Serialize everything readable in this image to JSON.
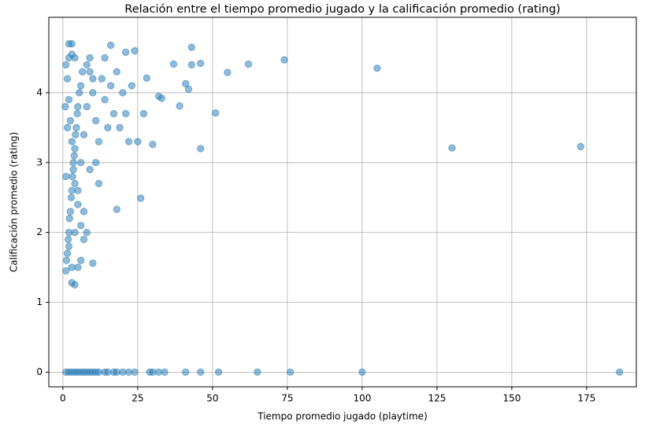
{
  "chart_data": {
    "type": "scatter",
    "title": "Relación entre el tiempo promedio jugado y la calificación promedio (rating)",
    "xlabel": "Tiempo promedio jugado (playtime)",
    "ylabel": "Calificación promedio (rating)",
    "color": "#1f77b4",
    "grid": true,
    "xlim": [
      -4.7,
      191.6
    ],
    "ylim": [
      -0.21,
      5.08
    ],
    "xticks": [
      0,
      25,
      50,
      75,
      100,
      125,
      150,
      175
    ],
    "yticks": [
      0,
      1,
      2,
      3,
      4
    ],
    "x": [
      105,
      74,
      62,
      55,
      46,
      43,
      43,
      51,
      46,
      130,
      173,
      26,
      18,
      10,
      4,
      3,
      37,
      39,
      41,
      42,
      32,
      30,
      27,
      28,
      33,
      24,
      21,
      16,
      2,
      3,
      186,
      100,
      76,
      65,
      52,
      46,
      41,
      34,
      32,
      29,
      24,
      22,
      20,
      18,
      15,
      12,
      10,
      8,
      6,
      4,
      2,
      1,
      3,
      5,
      7,
      9,
      11,
      14,
      17,
      30,
      1,
      1.5,
      2,
      2.5,
      3,
      3.5,
      4,
      4.5,
      5,
      6,
      1,
      1.5,
      2,
      2.5,
      3,
      3.5,
      4,
      5,
      6,
      7,
      1.2,
      1.8,
      2.2,
      2.8,
      3.2,
      3.8,
      4.2,
      4.8,
      5.5,
      6.5,
      8,
      9,
      10,
      11,
      12,
      13,
      14,
      15,
      16,
      17,
      18,
      19,
      20,
      21,
      22,
      23,
      25,
      14,
      12,
      9,
      7,
      8,
      6,
      5,
      4,
      3,
      2,
      1.5,
      1,
      0.8,
      2,
      3,
      4,
      5,
      6,
      7,
      8,
      9,
      10,
      11
    ],
    "y": [
      4.35,
      4.47,
      4.41,
      4.29,
      4.42,
      4.65,
      4.4,
      3.71,
      3.2,
      3.21,
      3.23,
      2.49,
      2.33,
      1.56,
      1.25,
      1.28,
      4.41,
      3.81,
      4.13,
      4.05,
      3.95,
      3.26,
      3.7,
      4.21,
      3.92,
      4.6,
      4.58,
      4.68,
      4.7,
      4.7,
      0,
      0,
      0,
      0,
      0,
      0,
      0,
      0,
      0,
      0,
      0,
      0,
      0,
      0,
      0,
      0,
      0,
      0,
      0,
      0,
      0,
      0,
      0,
      0,
      0,
      0,
      0,
      0,
      0,
      0,
      1.45,
      1.7,
      2.0,
      2.3,
      2.6,
      2.9,
      3.2,
      3.5,
      3.8,
      4.1,
      4.4,
      4.2,
      3.9,
      3.6,
      3.3,
      3.0,
      2.7,
      2.4,
      2.1,
      1.9,
      1.6,
      1.9,
      2.2,
      2.5,
      2.8,
      3.1,
      3.4,
      3.7,
      4.0,
      4.3,
      4.4,
      4.3,
      4.0,
      3.6,
      3.3,
      4.2,
      3.9,
      3.5,
      4.1,
      3.7,
      4.3,
      3.5,
      4.0,
      3.7,
      3.3,
      4.1,
      3.3,
      4.5,
      2.7,
      2.9,
      2.3,
      2.0,
      1.6,
      1.5,
      4.5,
      4.55,
      4.5,
      3.5,
      2.8,
      3.8,
      1.8,
      1.5,
      2.0,
      2.6,
      3.0,
      3.4,
      3.8,
      4.5,
      4.2,
      3.0
    ]
  }
}
